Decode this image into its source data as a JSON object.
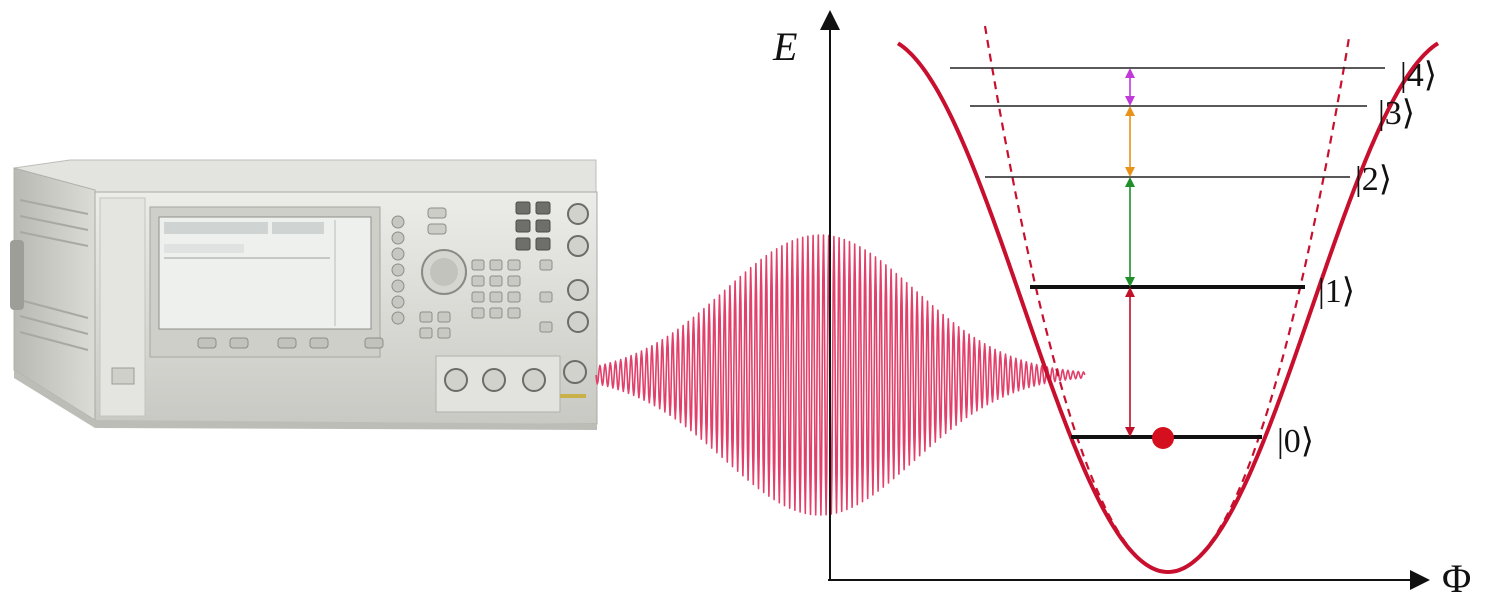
{
  "diagram": {
    "axes": {
      "y_label": "E",
      "x_label": "Φ"
    },
    "levels": [
      {
        "label": "|0⟩"
      },
      {
        "label": "|1⟩"
      },
      {
        "label": "|2⟩"
      },
      {
        "label": "|3⟩"
      },
      {
        "label": "|4⟩"
      }
    ],
    "transitions": [
      {
        "from": "|0⟩",
        "to": "|1⟩",
        "color": "#c0102a"
      },
      {
        "from": "|1⟩",
        "to": "|2⟩",
        "color": "#1f8f2a"
      },
      {
        "from": "|2⟩",
        "to": "|3⟩",
        "color": "#e8921a"
      },
      {
        "from": "|3⟩",
        "to": "|4⟩",
        "color": "#c03ad8"
      }
    ],
    "colors": {
      "potential": "#c8102e",
      "pulse": "#e0406a",
      "state_dot": "#d40f1e",
      "instrument_body": "#d9d9d4",
      "instrument_screen": "#eef0ee"
    },
    "icons": [
      "signal-generator-icon",
      "microwave-pulse-icon",
      "state-dot-icon"
    ]
  }
}
